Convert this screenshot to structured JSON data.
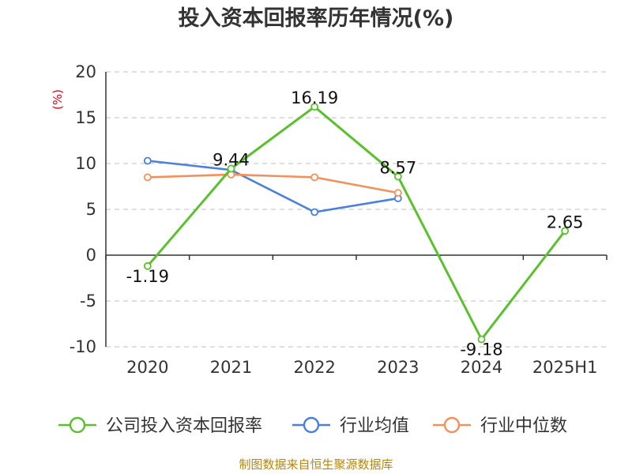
{
  "chart_data": {
    "type": "line",
    "title": "投入资本回报率历年情况(%)",
    "ylabel": "(%)",
    "categories": [
      "2020",
      "2021",
      "2022",
      "2023",
      "2024",
      "2025H1"
    ],
    "ylim": [
      -10,
      20
    ],
    "yticks": [
      "20",
      "15",
      "10",
      "5",
      "0",
      "-5",
      "-10"
    ],
    "grid": true,
    "legend_position": "bottom",
    "series": [
      {
        "name": "公司投入资本回报率",
        "color": "#5ac12e",
        "values": [
          -1.19,
          9.44,
          16.19,
          8.57,
          -9.18,
          2.65
        ],
        "labels": [
          "-1.19",
          "9.44",
          "16.19",
          "8.57",
          "-9.18",
          "2.65"
        ]
      },
      {
        "name": "行业均值",
        "color": "#4a7fdc",
        "values": [
          10.3,
          9.3,
          4.7,
          6.2,
          null,
          null
        ],
        "labels": []
      },
      {
        "name": "行业中位数",
        "color": "#f4915a",
        "values": [
          8.5,
          8.8,
          8.5,
          6.8,
          null,
          null
        ],
        "labels": []
      }
    ]
  },
  "footer": "制图数据来自恒生聚源数据库"
}
